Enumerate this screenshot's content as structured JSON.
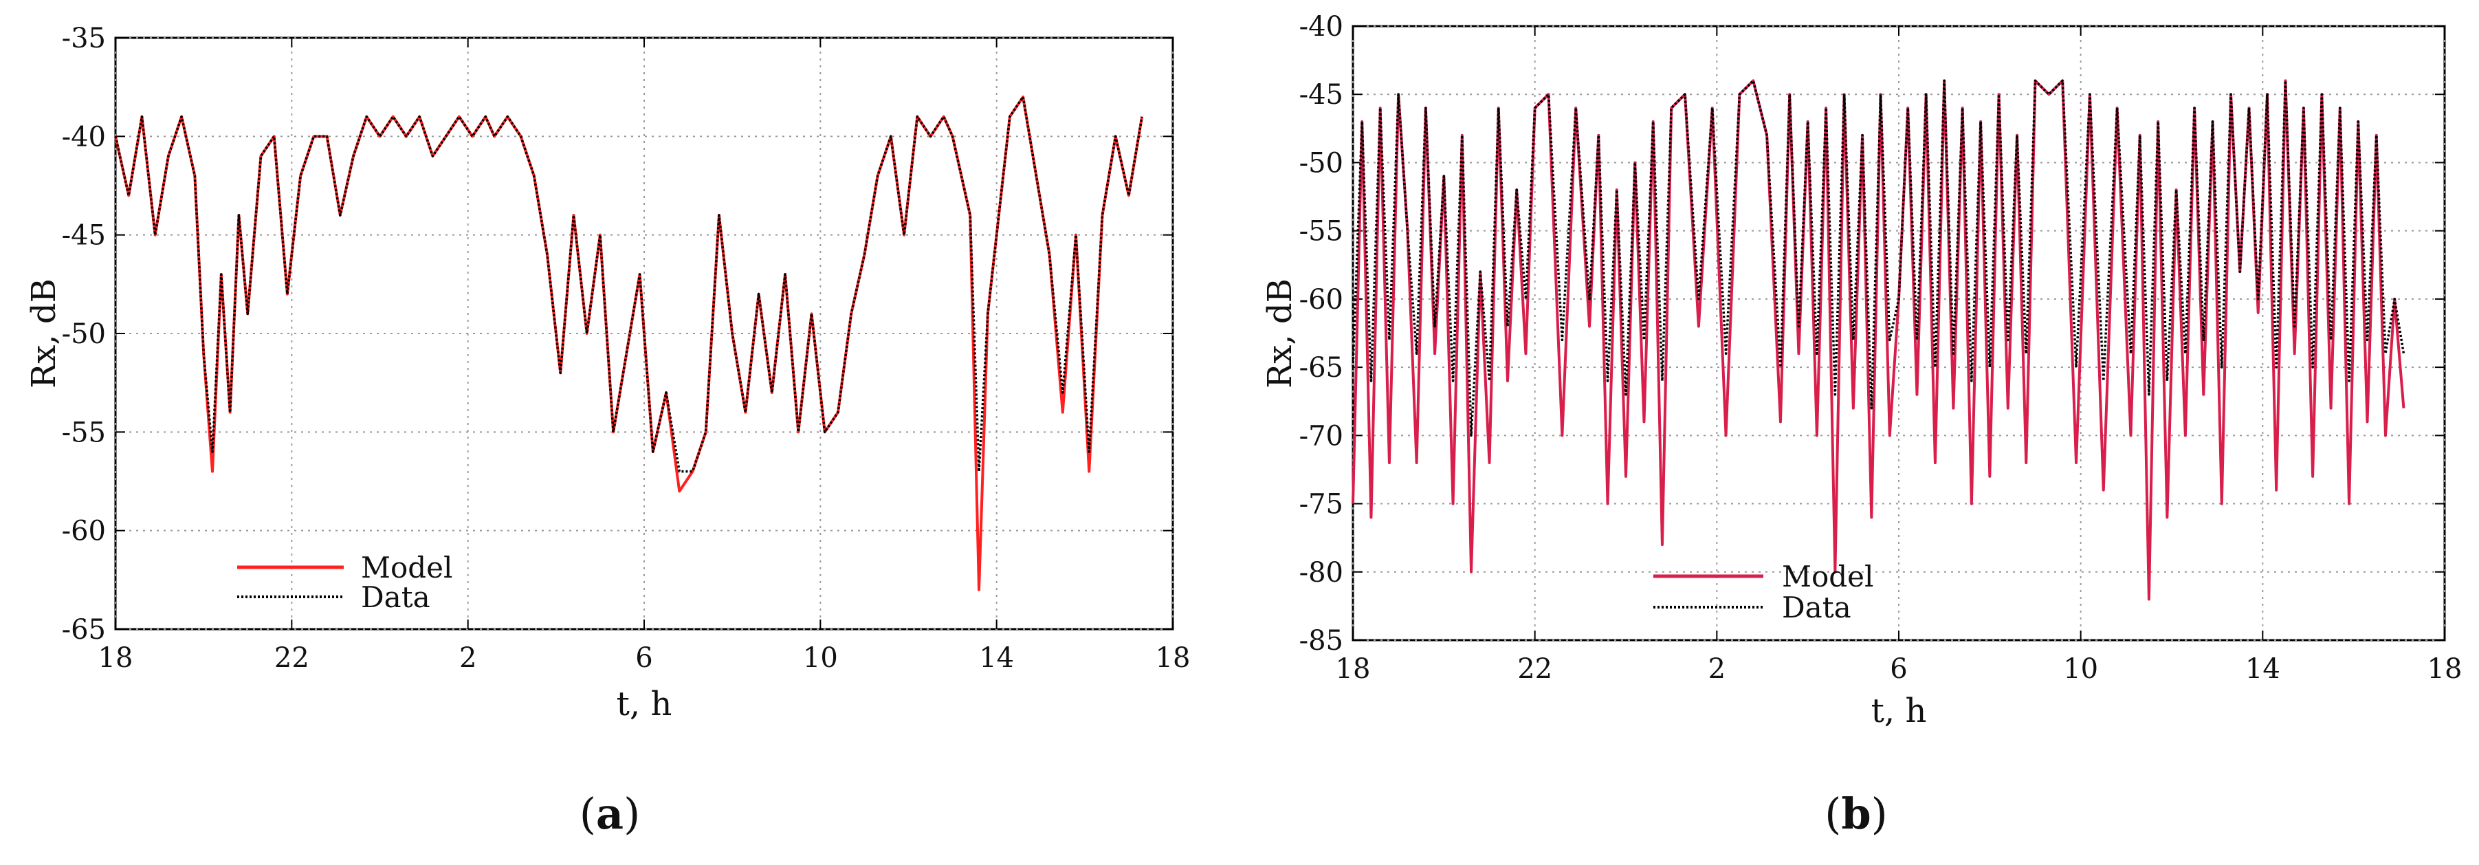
{
  "chart_data": [
    {
      "type": "line",
      "panel": "a",
      "caption": "(a)",
      "xlabel": "t, h",
      "ylabel": "Rx, dB",
      "xlim": [
        18,
        42
      ],
      "ylim": [
        -65,
        -35
      ],
      "xticks": [
        18,
        22,
        26,
        30,
        34,
        38,
        42
      ],
      "xtick_labels": [
        "18",
        "22",
        "2",
        "6",
        "10",
        "14",
        "18"
      ],
      "yticks": [
        -35,
        -40,
        -45,
        -50,
        -55,
        -60,
        -65
      ],
      "ytick_labels": [
        "-35",
        "-40",
        "-45",
        "-50",
        "-55",
        "-60",
        "-65"
      ],
      "grid": true,
      "legend_position": "bottom-left",
      "series": [
        {
          "name": "Model",
          "color": "#ff2020",
          "style": "solid"
        },
        {
          "name": "Data",
          "color": "#000000",
          "style": "dotted"
        }
      ],
      "x": [
        18.0,
        18.3,
        18.6,
        18.9,
        19.2,
        19.5,
        19.8,
        20.0,
        20.2,
        20.4,
        20.6,
        20.8,
        21.0,
        21.3,
        21.6,
        21.9,
        22.2,
        22.5,
        22.8,
        23.1,
        23.4,
        23.7,
        24.0,
        24.3,
        24.6,
        24.9,
        25.2,
        25.5,
        25.8,
        26.1,
        26.4,
        26.6,
        26.9,
        27.2,
        27.5,
        27.8,
        28.1,
        28.4,
        28.7,
        29.0,
        29.3,
        29.6,
        29.9,
        30.2,
        30.5,
        30.8,
        31.1,
        31.4,
        31.7,
        32.0,
        32.3,
        32.6,
        32.9,
        33.2,
        33.5,
        33.8,
        34.1,
        34.4,
        34.7,
        35.0,
        35.3,
        35.6,
        35.9,
        36.2,
        36.5,
        36.8,
        37.0,
        37.2,
        37.4,
        37.6,
        37.8,
        38.0,
        38.3,
        38.6,
        38.9,
        39.2,
        39.5,
        39.8,
        40.1,
        40.4,
        40.7,
        41.0,
        41.3
      ],
      "values": [
        -40,
        -43,
        -39,
        -45,
        -41,
        -39,
        -42,
        -51,
        -57,
        -47,
        -54,
        -44,
        -49,
        -41,
        -40,
        -48,
        -42,
        -40,
        -40,
        -44,
        -41,
        -39,
        -40,
        -39,
        -40,
        -39,
        -41,
        -40,
        -39,
        -40,
        -39,
        -40,
        -39,
        -40,
        -42,
        -46,
        -52,
        -44,
        -50,
        -45,
        -55,
        -51,
        -47,
        -56,
        -53,
        -58,
        -57,
        -55,
        -44,
        -50,
        -54,
        -48,
        -53,
        -47,
        -55,
        -49,
        -55,
        -54,
        -49,
        -46,
        -42,
        -40,
        -45,
        -39,
        -40,
        -39,
        -40,
        -42,
        -44,
        -63,
        -49,
        -45,
        -39,
        -38,
        -42,
        -46,
        -54,
        -45,
        -57,
        -44,
        -40,
        -43,
        -39
      ],
      "values_data": [
        -40,
        -43,
        -39,
        -45,
        -41,
        -39,
        -42,
        -51,
        -56,
        -47,
        -54,
        -44,
        -49,
        -41,
        -40,
        -48,
        -42,
        -40,
        -40,
        -44,
        -41,
        -39,
        -40,
        -39,
        -40,
        -39,
        -41,
        -40,
        -39,
        -40,
        -39,
        -40,
        -39,
        -40,
        -42,
        -46,
        -52,
        -44,
        -50,
        -45,
        -55,
        -51,
        -47,
        -56,
        -53,
        -57,
        -57,
        -55,
        -44,
        -50,
        -54,
        -48,
        -53,
        -47,
        -55,
        -49,
        -55,
        -54,
        -49,
        -46,
        -42,
        -40,
        -45,
        -39,
        -40,
        -39,
        -40,
        -42,
        -44,
        -57,
        -49,
        -45,
        -39,
        -38,
        -42,
        -46,
        -53,
        -45,
        -56,
        -44,
        -40,
        -43,
        -39
      ]
    },
    {
      "type": "line",
      "panel": "b",
      "caption": "(b)",
      "xlabel": "t, h",
      "ylabel": "Rx, dB",
      "xlim": [
        18,
        42
      ],
      "ylim": [
        -85,
        -40
      ],
      "xticks": [
        18,
        22,
        26,
        30,
        34,
        38,
        42
      ],
      "xtick_labels": [
        "18",
        "22",
        "2",
        "6",
        "10",
        "14",
        "18"
      ],
      "yticks": [
        -40,
        -45,
        -50,
        -55,
        -60,
        -65,
        -70,
        -75,
        -80,
        -85
      ],
      "ytick_labels": [
        "-40",
        "-45",
        "-50",
        "-55",
        "-60",
        "-65",
        "-70",
        "-75",
        "-80",
        "-85"
      ],
      "grid": true,
      "legend_position": "bottom-left",
      "series": [
        {
          "name": "Model",
          "color": "#d81e4a",
          "style": "solid"
        },
        {
          "name": "Data",
          "color": "#000000",
          "style": "dotted"
        }
      ],
      "x": [
        18.0,
        18.2,
        18.4,
        18.6,
        18.8,
        19.0,
        19.2,
        19.4,
        19.6,
        19.8,
        20.0,
        20.2,
        20.4,
        20.6,
        20.8,
        21.0,
        21.2,
        21.4,
        21.6,
        21.8,
        22.0,
        22.3,
        22.6,
        22.9,
        23.2,
        23.4,
        23.6,
        23.8,
        24.0,
        24.2,
        24.4,
        24.6,
        24.8,
        25.0,
        25.3,
        25.6,
        25.9,
        26.2,
        26.5,
        26.8,
        27.1,
        27.4,
        27.6,
        27.8,
        28.0,
        28.2,
        28.4,
        28.6,
        28.8,
        29.0,
        29.2,
        29.4,
        29.6,
        29.8,
        30.0,
        30.2,
        30.4,
        30.6,
        30.8,
        31.0,
        31.2,
        31.4,
        31.6,
        31.8,
        32.0,
        32.2,
        32.4,
        32.6,
        32.8,
        33.0,
        33.3,
        33.6,
        33.9,
        34.2,
        34.5,
        34.8,
        35.1,
        35.3,
        35.5,
        35.7,
        35.9,
        36.1,
        36.3,
        36.5,
        36.7,
        36.9,
        37.1,
        37.3,
        37.5,
        37.7,
        37.9,
        38.1,
        38.3,
        38.5,
        38.7,
        38.9,
        39.1,
        39.3,
        39.5,
        39.7,
        39.9,
        40.1,
        40.3,
        40.5,
        40.7,
        40.9,
        41.1
      ],
      "values": [
        -75,
        -47,
        -76,
        -46,
        -72,
        -45,
        -55,
        -72,
        -46,
        -64,
        -51,
        -75,
        -48,
        -80,
        -58,
        -72,
        -46,
        -66,
        -52,
        -64,
        -46,
        -45,
        -70,
        -46,
        -62,
        -48,
        -75,
        -52,
        -73,
        -50,
        -69,
        -47,
        -78,
        -46,
        -45,
        -62,
        -46,
        -70,
        -45,
        -44,
        -48,
        -69,
        -45,
        -64,
        -47,
        -70,
        -46,
        -80,
        -45,
        -68,
        -48,
        -76,
        -45,
        -70,
        -60,
        -46,
        -67,
        -45,
        -72,
        -44,
        -68,
        -46,
        -75,
        -47,
        -73,
        -45,
        -68,
        -48,
        -72,
        -44,
        -45,
        -44,
        -72,
        -45,
        -74,
        -46,
        -70,
        -48,
        -82,
        -47,
        -76,
        -52,
        -70,
        -46,
        -67,
        -47,
        -75,
        -45,
        -58,
        -46,
        -61,
        -45,
        -74,
        -44,
        -64,
        -46,
        -73,
        -45,
        -68,
        -46,
        -75,
        -47,
        -69,
        -48,
        -70,
        -60,
        -68
      ],
      "values_data": [
        -65,
        -47,
        -66,
        -46,
        -63,
        -45,
        -55,
        -64,
        -46,
        -62,
        -51,
        -66,
        -48,
        -70,
        -58,
        -66,
        -46,
        -62,
        -52,
        -60,
        -46,
        -45,
        -63,
        -46,
        -60,
        -48,
        -66,
        -52,
        -67,
        -50,
        -63,
        -47,
        -66,
        -46,
        -45,
        -60,
        -46,
        -64,
        -45,
        -44,
        -48,
        -65,
        -45,
        -62,
        -47,
        -64,
        -46,
        -67,
        -45,
        -63,
        -48,
        -68,
        -45,
        -63,
        -60,
        -46,
        -63,
        -45,
        -65,
        -44,
        -64,
        -46,
        -66,
        -47,
        -65,
        -45,
        -63,
        -48,
        -64,
        -44,
        -45,
        -44,
        -65,
        -45,
        -66,
        -46,
        -64,
        -48,
        -67,
        -47,
        -66,
        -52,
        -64,
        -46,
        -63,
        -47,
        -65,
        -45,
        -58,
        -46,
        -60,
        -45,
        -65,
        -44,
        -62,
        -46,
        -65,
        -45,
        -63,
        -46,
        -66,
        -47,
        -63,
        -48,
        -64,
        -60,
        -64
      ]
    }
  ]
}
